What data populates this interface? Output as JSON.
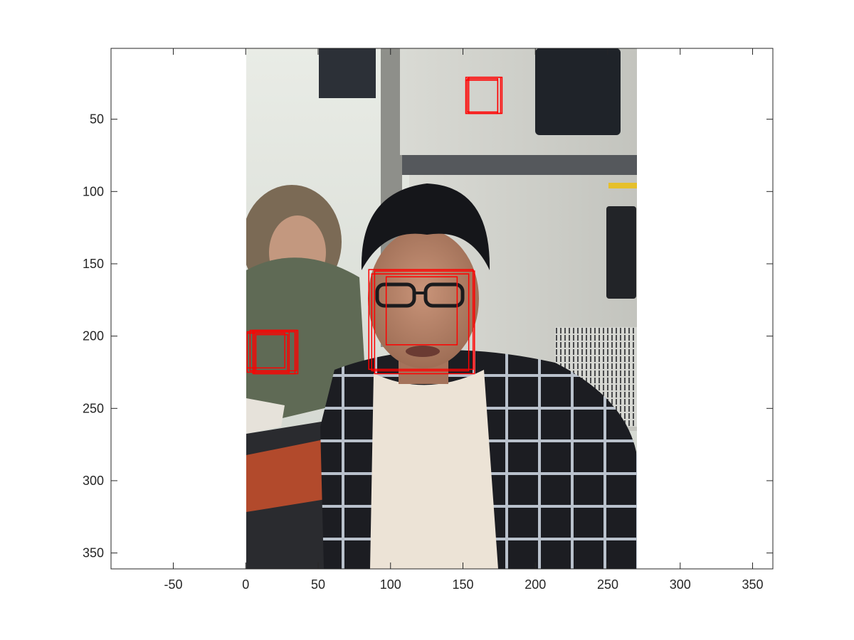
{
  "chart_data": {
    "type": "image",
    "title": "",
    "xlabel": "",
    "ylabel": "",
    "xlim": [
      -93,
      364
    ],
    "ylim": [
      1,
      361
    ],
    "y_direction": "reverse",
    "grid": false,
    "image_extent": {
      "x": [
        0,
        270
      ],
      "y": [
        1,
        361
      ]
    },
    "x_ticks": [
      -50,
      0,
      50,
      100,
      150,
      200,
      250,
      300,
      350
    ],
    "y_ticks": [
      50,
      100,
      150,
      200,
      250,
      300,
      350
    ],
    "box_color": "#ff0000",
    "detections": [
      {
        "x": [
          152,
          176
        ],
        "y": [
          21,
          46
        ]
      },
      {
        "x": [
          153,
          174
        ],
        "y": [
          22,
          45
        ]
      },
      {
        "x": [
          154,
          177
        ],
        "y": [
          21,
          46
        ]
      },
      {
        "x": [
          152,
          174
        ],
        "y": [
          23,
          46
        ]
      },
      {
        "x": [
          85,
          157
        ],
        "y": [
          154,
          223
        ]
      },
      {
        "x": [
          89,
          158
        ],
        "y": [
          155,
          226
        ]
      },
      {
        "x": [
          97,
          146
        ],
        "y": [
          159,
          206
        ]
      },
      {
        "x": [
          87,
          154
        ],
        "y": [
          157,
          224
        ]
      },
      {
        "x": [
          1,
          30
        ],
        "y": [
          197,
          225
        ]
      },
      {
        "x": [
          3,
          35
        ],
        "y": [
          196,
          224
        ]
      },
      {
        "x": [
          6,
          34
        ],
        "y": [
          197,
          226
        ]
      },
      {
        "x": [
          1,
          27
        ],
        "y": [
          198,
          222
        ]
      },
      {
        "x": [
          5,
          36
        ],
        "y": [
          196,
          226
        ]
      },
      {
        "x": [
          7,
          29
        ],
        "y": [
          199,
          224
        ]
      }
    ]
  }
}
